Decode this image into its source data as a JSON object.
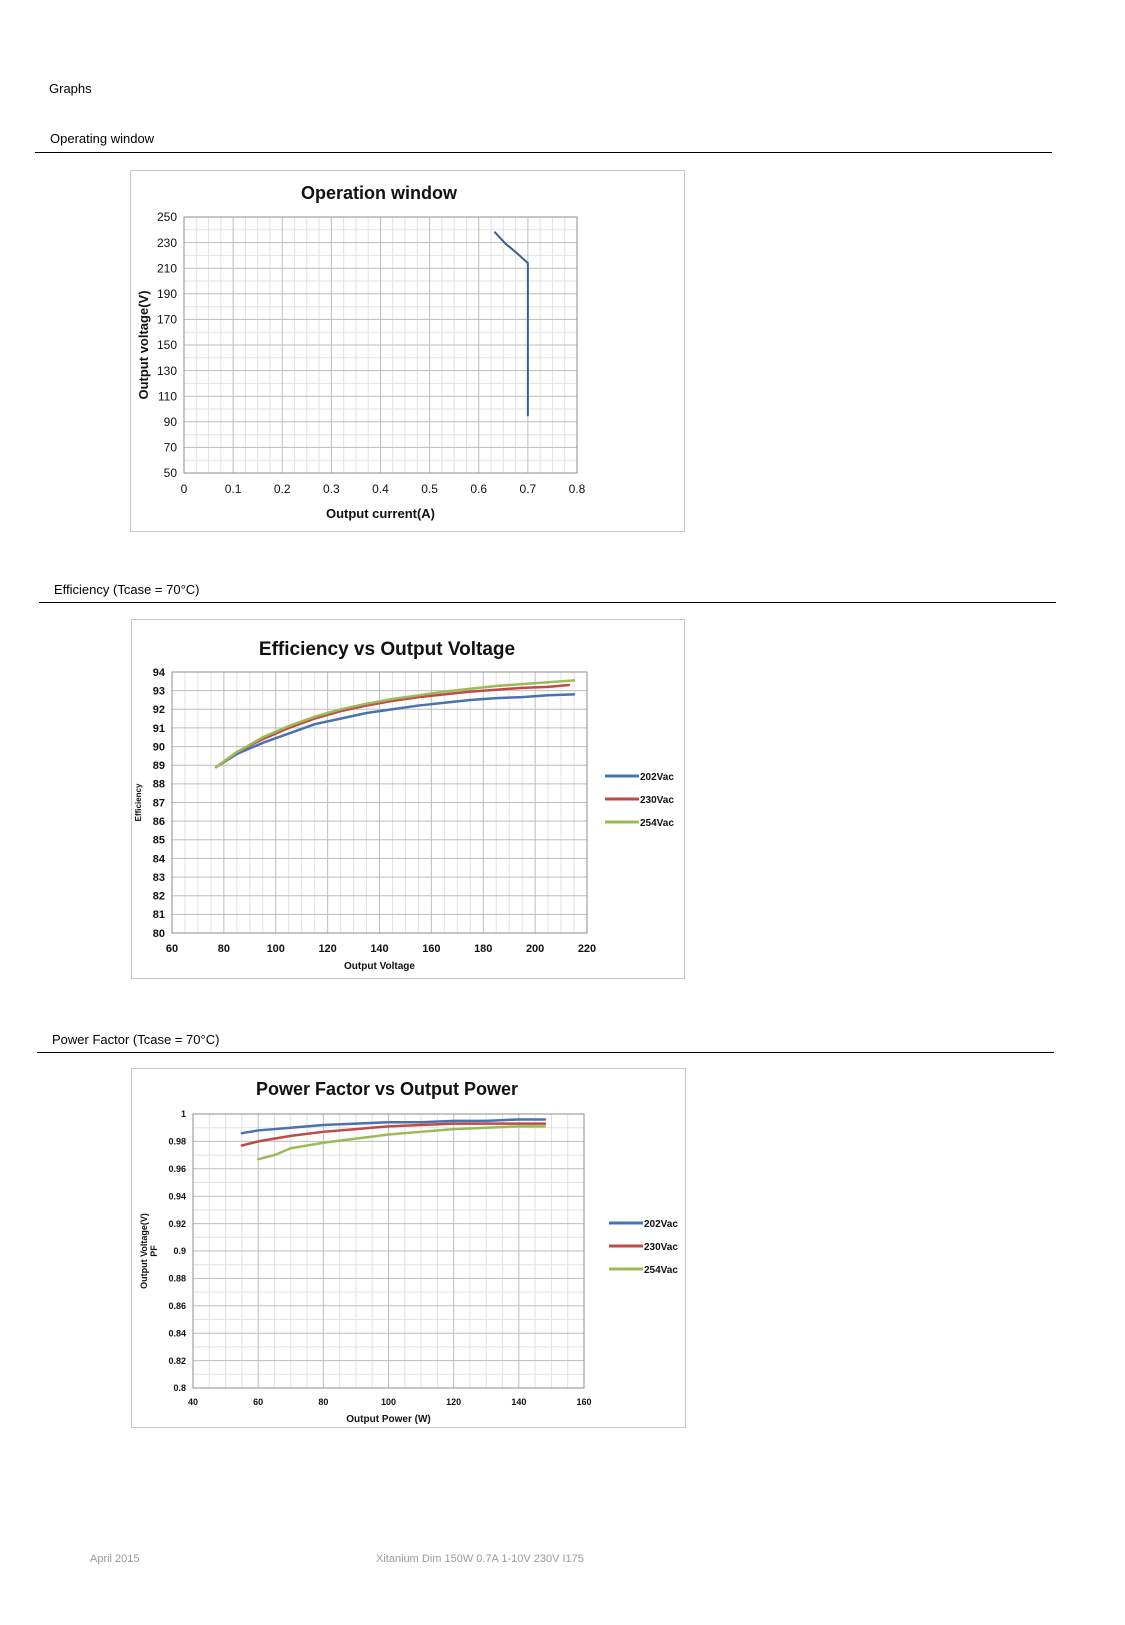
{
  "page": {
    "heading": "Graphs",
    "sections": [
      {
        "title": "Operating window",
        "suffix": ""
      },
      {
        "title": "Efficiency",
        "suffix": " (Tcase = 70°C)"
      },
      {
        "title": "Power Factor",
        "suffix": " (Tcase = 70°C)"
      }
    ],
    "footer": {
      "left": "April 2015",
      "center": "Xitanium Dim 150W 0.7A 1-10V 230V I175"
    }
  },
  "colors": {
    "series1": "#4a72b0",
    "series2": "#bf4a47",
    "series3": "#9bbb59",
    "op_line": "#3a5f95",
    "grid": "#c9c9c9"
  },
  "chart_data": [
    {
      "type": "line",
      "title": "Operation window",
      "xlabel": "Output current(A)",
      "ylabel": "Output  voltage(V)",
      "xlim": [
        0,
        0.8
      ],
      "ylim": [
        50,
        250
      ],
      "xticks": [
        0,
        0.1,
        0.2,
        0.3,
        0.4,
        0.5,
        0.6,
        0.7,
        0.8
      ],
      "yticks": [
        50,
        70,
        90,
        110,
        130,
        150,
        170,
        190,
        210,
        230,
        250
      ],
      "grid": true,
      "series": [
        {
          "x": [
            0.633,
            0.655,
            0.677,
            0.7,
            0.7
          ],
          "y": [
            238,
            229,
            222,
            214,
            95
          ]
        }
      ]
    },
    {
      "type": "line",
      "title": "Efficiency vs Output Voltage",
      "xlabel": "Output Voltage",
      "ylabel": "Efficiency",
      "xlim": [
        60,
        220
      ],
      "ylim": [
        80,
        94
      ],
      "xticks": [
        60,
        80,
        100,
        120,
        140,
        160,
        180,
        200,
        220
      ],
      "yticks": [
        80,
        81,
        82,
        83,
        84,
        85,
        86,
        87,
        88,
        89,
        90,
        91,
        92,
        93,
        94
      ],
      "grid": true,
      "legend": "right",
      "series": [
        {
          "name": "202Vac",
          "x": [
            77,
            85,
            95,
            105,
            115,
            125,
            135,
            145,
            155,
            165,
            175,
            185,
            195,
            205,
            215
          ],
          "y": [
            88.9,
            89.6,
            90.2,
            90.7,
            91.2,
            91.5,
            91.8,
            92.0,
            92.2,
            92.35,
            92.5,
            92.6,
            92.65,
            92.75,
            92.8
          ]
        },
        {
          "name": "230Vac",
          "x": [
            77,
            85,
            95,
            105,
            115,
            125,
            135,
            145,
            155,
            165,
            175,
            185,
            195,
            205,
            213
          ],
          "y": [
            88.9,
            89.7,
            90.4,
            91.0,
            91.5,
            91.9,
            92.2,
            92.45,
            92.65,
            92.8,
            92.95,
            93.05,
            93.15,
            93.2,
            93.3
          ]
        },
        {
          "name": "254Vac",
          "x": [
            77,
            85,
            95,
            105,
            115,
            125,
            135,
            145,
            155,
            165,
            175,
            185,
            195,
            205,
            215
          ],
          "y": [
            88.9,
            89.7,
            90.5,
            91.1,
            91.6,
            92.0,
            92.3,
            92.55,
            92.75,
            92.95,
            93.1,
            93.25,
            93.35,
            93.45,
            93.55
          ]
        }
      ]
    },
    {
      "type": "line",
      "title": "Power Factor vs Output Power",
      "xlabel": "Output Power (W)",
      "ylabel": "Output Voltage(V)",
      "ylabel2": "PF",
      "xlim": [
        40,
        160
      ],
      "ylim": [
        0.8,
        1
      ],
      "xticks": [
        40,
        60,
        80,
        100,
        120,
        140,
        160
      ],
      "yticks": [
        0.8,
        0.82,
        0.84,
        0.86,
        0.88,
        0.9,
        0.92,
        0.94,
        0.96,
        0.98,
        1
      ],
      "grid": true,
      "legend": "right",
      "series": [
        {
          "name": "202Vac",
          "x": [
            55,
            60,
            70,
            80,
            90,
            100,
            110,
            120,
            130,
            140,
            148
          ],
          "y": [
            0.986,
            0.988,
            0.99,
            0.992,
            0.993,
            0.994,
            0.994,
            0.995,
            0.995,
            0.996,
            0.996
          ]
        },
        {
          "name": "230Vac",
          "x": [
            55,
            60,
            70,
            80,
            90,
            100,
            110,
            120,
            130,
            140,
            148
          ],
          "y": [
            0.977,
            0.98,
            0.984,
            0.987,
            0.989,
            0.991,
            0.992,
            0.993,
            0.993,
            0.993,
            0.993
          ]
        },
        {
          "name": "254Vac",
          "x": [
            60,
            65,
            70,
            80,
            90,
            100,
            110,
            120,
            130,
            140,
            148
          ],
          "y": [
            0.967,
            0.97,
            0.975,
            0.979,
            0.982,
            0.985,
            0.987,
            0.989,
            0.99,
            0.991,
            0.991
          ]
        }
      ]
    }
  ]
}
